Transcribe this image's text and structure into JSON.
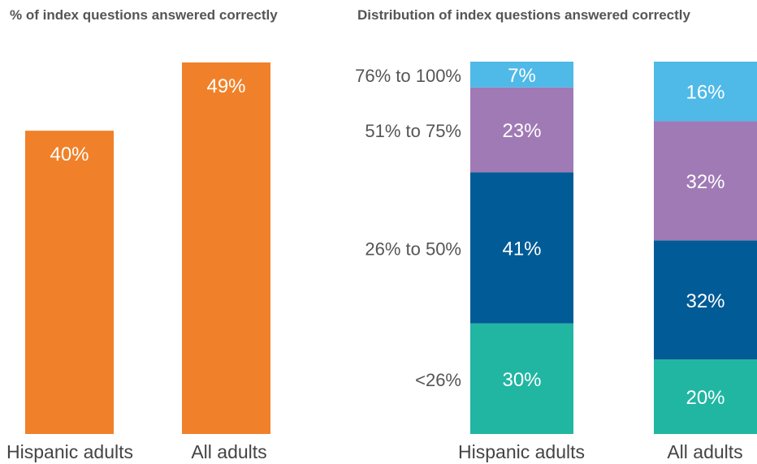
{
  "chart_data": [
    {
      "type": "bar",
      "title": "% of index questions answered correctly",
      "categories": [
        "Hispanic adults",
        "All adults"
      ],
      "values": [
        40,
        49
      ],
      "value_labels": [
        "40%",
        "49%"
      ],
      "ylim": [
        0,
        60
      ],
      "grid": false,
      "color": "#f0812a"
    },
    {
      "type": "bar",
      "stacked": true,
      "title": "Distribution of index questions answered correctly",
      "categories": [
        "Hispanic adults",
        "All adults"
      ],
      "series": [
        {
          "name": "<26%",
          "values": [
            30,
            20
          ],
          "labels": [
            "30%",
            "20%"
          ],
          "color": "#20b6a2"
        },
        {
          "name": "26% to 50%",
          "values": [
            41,
            32
          ],
          "labels": [
            "41%",
            "32%"
          ],
          "color": "#005b96"
        },
        {
          "name": "51% to 75%",
          "values": [
            23,
            32
          ],
          "labels": [
            "23%",
            "32%"
          ],
          "color": "#a07ab5"
        },
        {
          "name": "76% to 100%",
          "values": [
            7,
            16
          ],
          "labels": [
            "7%",
            "16%"
          ],
          "color": "#4fb9e8"
        }
      ],
      "grid": false,
      "legend": "left"
    }
  ]
}
